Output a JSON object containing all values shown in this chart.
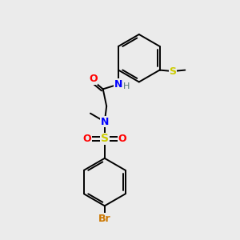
{
  "background_color": "#ebebeb",
  "bond_color": "#000000",
  "atom_colors": {
    "N": "#0000ff",
    "O": "#ff0000",
    "S_sulfonyl": "#cccc00",
    "S_thioether": "#cccc00",
    "Br": "#cc7700",
    "H": "#557777",
    "C": "#000000"
  },
  "figsize": [
    3.0,
    3.0
  ],
  "dpi": 100
}
